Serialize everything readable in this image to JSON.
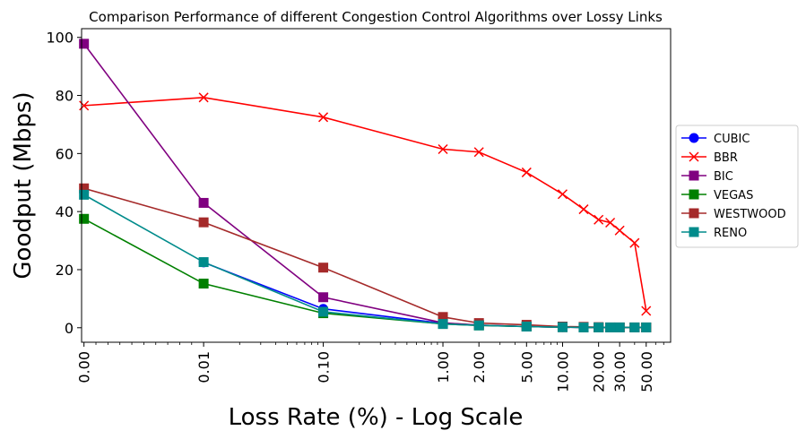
{
  "chart_data": {
    "type": "line",
    "title": "Comparison Performance of different Congestion Control Algorithms over Lossy Links",
    "xlabel": "Loss Rate (%) - Log Scale",
    "ylabel": "Goodput (Mbps)",
    "x_scale": "symlog",
    "xlim": [
      -0.0002,
      80
    ],
    "ylim": [
      -5,
      103
    ],
    "x_ticks": [
      0,
      0.01,
      0.1,
      1,
      2,
      5,
      10,
      20,
      30,
      50
    ],
    "x_tick_labels": [
      "0.00",
      "0.01",
      "0.10",
      "1.00",
      "2.00",
      "5.00",
      "10.00",
      "20.00",
      "30.00",
      "50.00"
    ],
    "y_ticks": [
      0,
      20,
      40,
      60,
      80,
      100
    ],
    "y_tick_labels": [
      "0",
      "20",
      "40",
      "60",
      "80",
      "100"
    ],
    "legend_position": "center-right",
    "grid": false,
    "x": [
      0,
      0.01,
      0.1,
      1,
      2,
      5,
      10,
      15,
      20,
      25,
      30,
      40,
      50
    ],
    "series": [
      {
        "name": "CUBIC",
        "color": "#0000ff",
        "marker": "circle",
        "values": [
          null,
          22.5,
          6.5,
          1.5,
          0.9,
          0.4,
          0.2,
          0.1,
          0.1,
          0.1,
          0.1,
          0.1,
          0.1
        ]
      },
      {
        "name": "BBR",
        "color": "#ff0000",
        "marker": "x",
        "values": [
          76.5,
          79.3,
          72.5,
          61.5,
          60.5,
          53.5,
          46,
          40.8,
          37.2,
          36.2,
          33.5,
          29.2,
          5.8
        ]
      },
      {
        "name": "BIC",
        "color": "#800080",
        "marker": "square",
        "values": [
          97.8,
          43,
          10.5,
          1.7,
          0.9,
          0.4,
          0.2,
          0.1,
          0.1,
          0.1,
          0.1,
          0.1,
          0.1
        ]
      },
      {
        "name": "VEGAS",
        "color": "#008000",
        "marker": "square",
        "values": [
          37.5,
          15.2,
          5,
          1.3,
          0.8,
          0.4,
          0.2,
          0.1,
          0.1,
          0.1,
          0.1,
          0.1,
          0.1
        ]
      },
      {
        "name": "WESTWOOD",
        "color": "#a52a2a",
        "marker": "square",
        "values": [
          48,
          36.3,
          20.7,
          3.7,
          1.6,
          1,
          0.4,
          0.3,
          0.2,
          0.1,
          0.1,
          0.1,
          0.1
        ]
      },
      {
        "name": "RENO",
        "color": "#008b8b",
        "marker": "square",
        "values": [
          45.8,
          22.6,
          5.5,
          1.3,
          0.8,
          0.4,
          0.2,
          0.1,
          0.1,
          0.1,
          0.1,
          0.1,
          0.1
        ]
      }
    ]
  }
}
